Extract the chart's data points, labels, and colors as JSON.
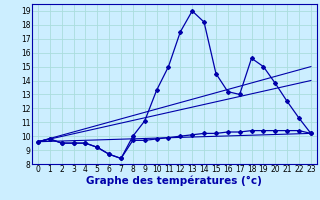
{
  "title": "Graphe des températures (°c)",
  "bg_color": "#cceeff",
  "line_color": "#0000aa",
  "xlim": [
    -0.5,
    23.5
  ],
  "ylim": [
    8.0,
    19.5
  ],
  "xticks": [
    0,
    1,
    2,
    3,
    4,
    5,
    6,
    7,
    8,
    9,
    10,
    11,
    12,
    13,
    14,
    15,
    16,
    17,
    18,
    19,
    20,
    21,
    22,
    23
  ],
  "yticks": [
    8,
    9,
    10,
    11,
    12,
    13,
    14,
    15,
    16,
    17,
    18,
    19
  ],
  "grid_color": "#aadddd",
  "tick_fontsize": 5.5,
  "label_fontsize": 7.5,
  "main_series_x": [
    0,
    1,
    2,
    3,
    4,
    5,
    6,
    7,
    8,
    9,
    10,
    11,
    12,
    13,
    14,
    15,
    16,
    17,
    18,
    19,
    20,
    21,
    22,
    23
  ],
  "main_series_y": [
    9.6,
    9.8,
    9.5,
    9.5,
    9.5,
    9.2,
    8.7,
    8.4,
    10.0,
    11.1,
    13.3,
    15.0,
    17.5,
    19.0,
    18.2,
    14.5,
    13.2,
    13.0,
    15.6,
    15.0,
    13.8,
    12.5,
    11.3,
    10.2
  ],
  "flat_series_x": [
    0,
    1,
    2,
    3,
    4,
    5,
    6,
    7,
    8,
    9,
    10,
    11,
    12,
    13,
    14,
    15,
    16,
    17,
    18,
    19,
    20,
    21,
    22,
    23
  ],
  "flat_series_y": [
    9.6,
    9.8,
    9.5,
    9.5,
    9.5,
    9.2,
    8.7,
    8.4,
    9.7,
    9.7,
    9.8,
    9.9,
    10.0,
    10.1,
    10.2,
    10.2,
    10.3,
    10.3,
    10.4,
    10.4,
    10.4,
    10.4,
    10.4,
    10.2
  ],
  "trend_lines": [
    {
      "x": [
        0,
        23
      ],
      "y": [
        9.6,
        10.2
      ]
    },
    {
      "x": [
        0,
        23
      ],
      "y": [
        9.6,
        14.0
      ]
    },
    {
      "x": [
        0,
        23
      ],
      "y": [
        9.6,
        15.0
      ]
    }
  ]
}
